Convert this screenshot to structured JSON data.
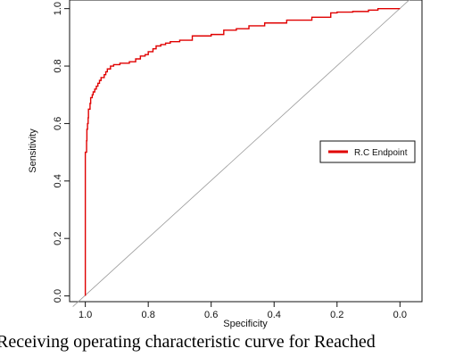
{
  "chart_data": {
    "type": "line",
    "xlabel": "Specificity",
    "ylabel": "Sensitivity",
    "xlim": [
      1.05,
      -0.07
    ],
    "ylim": [
      -0.02,
      1.03
    ],
    "x_ticks": [
      1.0,
      0.8,
      0.6,
      0.4,
      0.2,
      0.0
    ],
    "x_tick_labels": [
      "1.0",
      "0.8",
      "0.6",
      "0.4",
      "0.2",
      "0.0"
    ],
    "y_ticks": [
      0.0,
      0.2,
      0.4,
      0.6,
      0.8,
      1.0
    ],
    "y_tick_labels": [
      "0.0",
      "0.2",
      "0.4",
      "0.6",
      "0.8",
      "1.0"
    ],
    "legend": {
      "position": "right",
      "entries": [
        "R.C Endpoint"
      ]
    },
    "diagonal": {
      "x": [
        1.0,
        0.0
      ],
      "y": [
        0.0,
        1.0
      ],
      "color": "#9a9a9a"
    },
    "series": [
      {
        "name": "R.C Endpoint",
        "color": "#e00000",
        "x": [
          1.0,
          1.0,
          0.996,
          0.995,
          0.993,
          0.991,
          0.99,
          0.985,
          0.983,
          0.978,
          0.975,
          0.97,
          0.965,
          0.96,
          0.955,
          0.95,
          0.94,
          0.935,
          0.93,
          0.92,
          0.91,
          0.9,
          0.89,
          0.875,
          0.86,
          0.84,
          0.825,
          0.81,
          0.8,
          0.785,
          0.775,
          0.76,
          0.745,
          0.73,
          0.7,
          0.66,
          0.6,
          0.56,
          0.52,
          0.48,
          0.43,
          0.36,
          0.28,
          0.22,
          0.2,
          0.15,
          0.1,
          0.07,
          0.05,
          0.0
        ],
        "y": [
          0.0,
          0.43,
          0.5,
          0.54,
          0.58,
          0.6,
          0.62,
          0.65,
          0.67,
          0.69,
          0.7,
          0.71,
          0.72,
          0.73,
          0.74,
          0.75,
          0.76,
          0.77,
          0.78,
          0.79,
          0.8,
          0.805,
          0.805,
          0.81,
          0.81,
          0.815,
          0.825,
          0.835,
          0.84,
          0.85,
          0.86,
          0.87,
          0.875,
          0.88,
          0.885,
          0.89,
          0.905,
          0.91,
          0.925,
          0.93,
          0.94,
          0.95,
          0.96,
          0.97,
          0.985,
          0.988,
          0.99,
          0.995,
          1.0,
          1.0
        ]
      }
    ]
  },
  "caption": "Receiving operating characteristic curve for Reached"
}
